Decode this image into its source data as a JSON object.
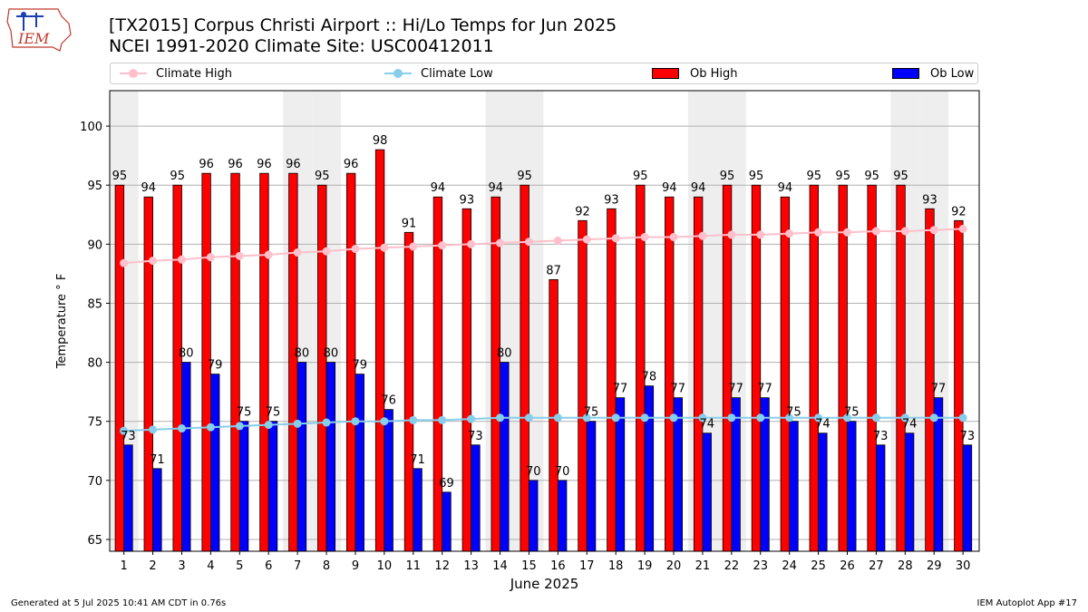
{
  "header": {
    "title": "[TX2015] Corpus Christi Airport :: Hi/Lo Temps for Jun 2025",
    "subtitle": "NCEI 1991-2020 Climate Site: USC00412011",
    "logo_text": "IEM"
  },
  "legend": {
    "items": [
      {
        "label": "Climate High",
        "color": "#ffc0cb",
        "kind": "line"
      },
      {
        "label": "Climate Low",
        "color": "#87ceeb",
        "kind": "line"
      },
      {
        "label": "Ob High",
        "color": "#ff0000",
        "kind": "box"
      },
      {
        "label": "Ob Low",
        "color": "#0000ff",
        "kind": "box"
      }
    ]
  },
  "footer": {
    "left": "Generated at 5 Jul 2025 10:41 AM CDT in 0.76s",
    "right": "IEM Autoplot App #17"
  },
  "chart_data": {
    "type": "bar",
    "xlabel": "June 2025",
    "ylabel": "Temperature ° F",
    "ylim": [
      64,
      103
    ],
    "yticks": [
      65,
      70,
      75,
      80,
      85,
      90,
      95,
      100
    ],
    "grid": true,
    "legend_position": "top",
    "weekend_shading_color": "#eeeeee",
    "weekend_days": [
      1,
      7,
      8,
      14,
      15,
      21,
      22,
      28,
      29
    ],
    "categories": [
      1,
      2,
      3,
      4,
      5,
      6,
      7,
      8,
      9,
      10,
      11,
      12,
      13,
      14,
      15,
      16,
      17,
      18,
      19,
      20,
      21,
      22,
      23,
      24,
      25,
      26,
      27,
      28,
      29,
      30
    ],
    "series": [
      {
        "name": "Ob High",
        "kind": "bar",
        "color": "#ff0000",
        "values": [
          95,
          94,
          95,
          96,
          96,
          96,
          96,
          95,
          96,
          98,
          91,
          94,
          93,
          94,
          95,
          87,
          92,
          93,
          95,
          94,
          94,
          95,
          95,
          94,
          95,
          95,
          95,
          95,
          93,
          92
        ]
      },
      {
        "name": "Ob Low",
        "kind": "bar",
        "color": "#0000ff",
        "values": [
          73,
          71,
          80,
          79,
          75,
          75,
          80,
          80,
          79,
          76,
          71,
          69,
          73,
          80,
          70,
          70,
          75,
          77,
          78,
          77,
          74,
          77,
          77,
          75,
          74,
          75,
          73,
          74,
          77,
          73
        ]
      },
      {
        "name": "Climate High",
        "kind": "line",
        "color": "#ffc0cb",
        "values": [
          88.4,
          88.6,
          88.7,
          88.9,
          89.0,
          89.1,
          89.3,
          89.4,
          89.6,
          89.7,
          89.8,
          89.9,
          90.0,
          90.1,
          90.2,
          90.3,
          90.4,
          90.5,
          90.6,
          90.6,
          90.7,
          90.8,
          90.8,
          90.9,
          91.0,
          91.0,
          91.1,
          91.1,
          91.2,
          91.3
        ]
      },
      {
        "name": "Climate Low",
        "kind": "line",
        "color": "#87ceeb",
        "values": [
          74.2,
          74.3,
          74.4,
          74.5,
          74.6,
          74.7,
          74.8,
          74.9,
          75.0,
          75.0,
          75.1,
          75.1,
          75.2,
          75.3,
          75.3,
          75.3,
          75.3,
          75.3,
          75.3,
          75.3,
          75.3,
          75.3,
          75.3,
          75.3,
          75.3,
          75.3,
          75.3,
          75.3,
          75.3,
          75.3
        ]
      }
    ]
  }
}
